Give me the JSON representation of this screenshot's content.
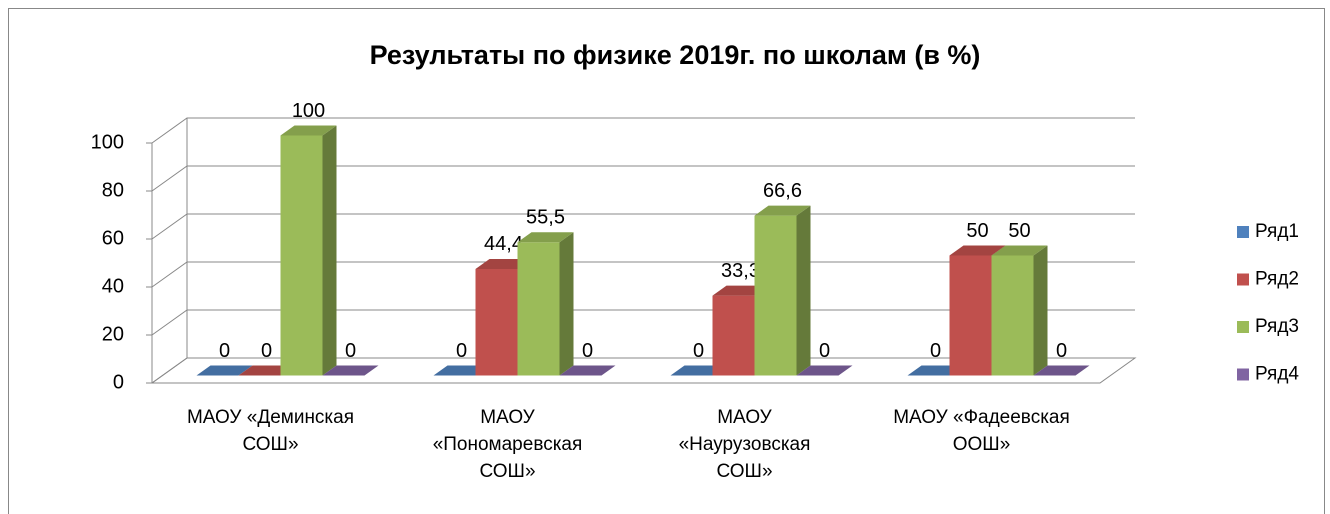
{
  "chart_data": {
    "type": "bar3d",
    "title": "Результаты по физике 2019г. по школам  (в %)",
    "categories": [
      "МАОУ «Деминская СОШ»",
      "МАОУ «Пономаревская СОШ»",
      "МАОУ «Наурузовская СОШ»",
      "МАОУ «Фадеевская ООШ»"
    ],
    "series": [
      {
        "name": "Ряд1",
        "color": "#4f81bd",
        "values": [
          0,
          0,
          0,
          0
        ],
        "value_labels": [
          "0",
          "0",
          "0",
          "0"
        ]
      },
      {
        "name": "Ряд2",
        "color": "#c0504d",
        "values": [
          0,
          44.4,
          33.3,
          50
        ],
        "value_labels": [
          "0",
          "44,4",
          "33,3",
          "50"
        ]
      },
      {
        "name": "Ряд3",
        "color": "#9bbb59",
        "values": [
          100,
          55.5,
          66.6,
          50
        ],
        "value_labels": [
          "100",
          "55,5",
          "66,6",
          "50"
        ]
      },
      {
        "name": "Ряд4",
        "color": "#8064a2",
        "values": [
          0,
          0,
          0,
          0
        ],
        "value_labels": [
          "0",
          "0",
          "0",
          "0"
        ]
      }
    ],
    "ylim": [
      0,
      100
    ],
    "yticks": [
      0,
      20,
      40,
      60,
      80,
      100
    ],
    "grid": true,
    "legend": "right"
  }
}
